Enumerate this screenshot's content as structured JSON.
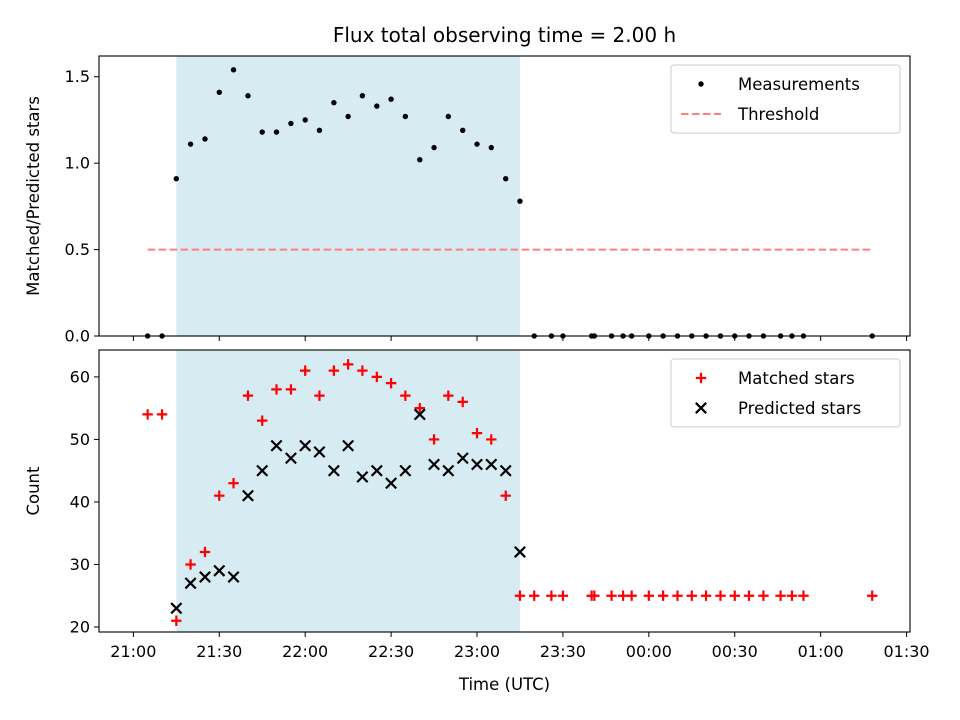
{
  "chart_data": {
    "title": "Flux total observing time = 2.00 h",
    "xlabel": "Time (UTC)",
    "x_unit": "hours after 21:00 UTC",
    "x_ticks": [
      {
        "v": 0.0,
        "label": "21:00"
      },
      {
        "v": 0.5,
        "label": "21:30"
      },
      {
        "v": 1.0,
        "label": "22:00"
      },
      {
        "v": 1.5,
        "label": "22:30"
      },
      {
        "v": 2.0,
        "label": "23:00"
      },
      {
        "v": 2.5,
        "label": "23:30"
      },
      {
        "v": 3.0,
        "label": "00:00"
      },
      {
        "v": 3.5,
        "label": "00:30"
      },
      {
        "v": 4.0,
        "label": "01:00"
      },
      {
        "v": 4.5,
        "label": "01:30"
      }
    ],
    "xlim": [
      -0.2,
      4.52
    ],
    "shaded_span": [
      0.25,
      2.25
    ],
    "shade_color": "#add8e6",
    "panels": [
      {
        "type": "scatter",
        "ylabel": "Matched/Predicted stars",
        "ylim": [
          0,
          1.62
        ],
        "yticks": [
          0,
          0.5,
          1.0,
          1.5
        ],
        "ytick_labels": [
          "0.0",
          "0.5",
          "1.0",
          "1.5"
        ],
        "threshold": {
          "value": 0.5,
          "x_range": [
            0.083,
            4.3
          ],
          "color": "#ff7f7f",
          "label": "Threshold"
        },
        "series": [
          {
            "name": "Measurements",
            "marker": "dot",
            "color": "#000000",
            "x": [
              0.083,
              0.167,
              0.25,
              0.333,
              0.417,
              0.5,
              0.583,
              0.667,
              0.75,
              0.833,
              0.917,
              1.0,
              1.083,
              1.167,
              1.25,
              1.333,
              1.417,
              1.5,
              1.583,
              1.667,
              1.75,
              1.833,
              1.917,
              2.0,
              2.083,
              2.167,
              2.25,
              2.333,
              2.433,
              2.5,
              2.667,
              2.683,
              2.783,
              2.85,
              2.9,
              3.0,
              3.083,
              3.167,
              3.25,
              3.333,
              3.417,
              3.5,
              3.583,
              3.667,
              3.767,
              3.833,
              3.9,
              4.3
            ],
            "y": [
              0,
              0,
              0.91,
              1.11,
              1.14,
              1.41,
              1.54,
              1.39,
              1.18,
              1.18,
              1.23,
              1.25,
              1.19,
              1.35,
              1.27,
              1.39,
              1.33,
              1.37,
              1.27,
              1.02,
              1.09,
              1.27,
              1.19,
              1.11,
              1.09,
              0.91,
              0.78,
              0,
              0,
              0,
              0,
              0,
              0,
              0,
              0,
              0,
              0,
              0,
              0,
              0,
              0,
              0,
              0,
              0,
              0,
              0,
              0,
              0
            ]
          }
        ],
        "legend": {
          "placement": "top-right",
          "entries": [
            "Measurements",
            "Threshold"
          ]
        }
      },
      {
        "type": "scatter",
        "ylabel": "Count",
        "ylim": [
          19.2,
          64.3
        ],
        "yticks": [
          20,
          30,
          40,
          50,
          60
        ],
        "ytick_labels": [
          "20",
          "30",
          "40",
          "50",
          "60"
        ],
        "series": [
          {
            "name": "Matched stars",
            "marker": "plus",
            "color": "#ff0000",
            "x": [
              0.083,
              0.167,
              0.25,
              0.333,
              0.417,
              0.5,
              0.583,
              0.667,
              0.75,
              0.833,
              0.917,
              1.0,
              1.083,
              1.167,
              1.25,
              1.333,
              1.417,
              1.5,
              1.583,
              1.667,
              1.75,
              1.833,
              1.917,
              2.0,
              2.083,
              2.167,
              2.25,
              2.333,
              2.433,
              2.5,
              2.667,
              2.683,
              2.783,
              2.85,
              2.9,
              3.0,
              3.083,
              3.167,
              3.25,
              3.333,
              3.417,
              3.5,
              3.583,
              3.667,
              3.767,
              3.833,
              3.9,
              4.3
            ],
            "y": [
              54,
              54,
              21,
              30,
              32,
              41,
              43,
              57,
              53,
              58,
              58,
              61,
              57,
              61,
              62,
              61,
              60,
              59,
              57,
              55,
              50,
              57,
              56,
              51,
              50,
              41,
              25,
              25,
              25,
              25,
              25,
              25,
              25,
              25,
              25,
              25,
              25,
              25,
              25,
              25,
              25,
              25,
              25,
              25,
              25,
              25,
              25,
              25
            ]
          },
          {
            "name": "Predicted stars",
            "marker": "x",
            "color": "#000000",
            "x": [
              0.25,
              0.333,
              0.417,
              0.5,
              0.583,
              0.667,
              0.75,
              0.833,
              0.917,
              1.0,
              1.083,
              1.167,
              1.25,
              1.333,
              1.417,
              1.5,
              1.583,
              1.667,
              1.75,
              1.833,
              1.917,
              2.0,
              2.083,
              2.167,
              2.25
            ],
            "y": [
              23,
              27,
              28,
              29,
              28,
              41,
              45,
              49,
              47,
              49,
              48,
              45,
              49,
              44,
              45,
              43,
              45,
              54,
              46,
              45,
              47,
              46,
              46,
              45,
              32
            ]
          }
        ],
        "legend": {
          "placement": "top-right",
          "entries": [
            "Matched stars",
            "Predicted stars"
          ]
        }
      }
    ]
  }
}
